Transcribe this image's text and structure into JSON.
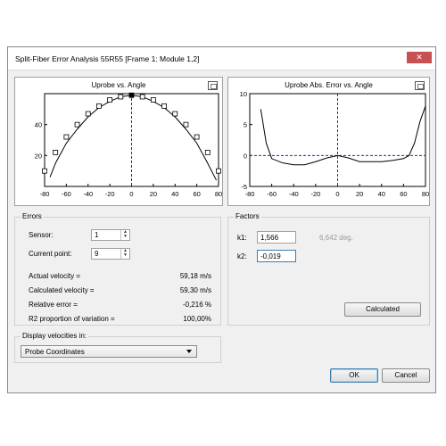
{
  "window": {
    "title": "Split-Fiber Error Analysis 55R55 [Frame 1: Module 1,2]",
    "close_glyph": "✕"
  },
  "plot_left": {
    "title": "Uprobe vs. Angle"
  },
  "plot_right": {
    "title": "Uprobe Abs. Error vs. Angle"
  },
  "errors": {
    "group_label": "Errors",
    "sensor_label": "Sensor:",
    "sensor_value": "1",
    "current_point_label": "Current point:",
    "current_point_value": "9",
    "rows": [
      {
        "label": "Actual velocity =",
        "value": "59,18 m/s"
      },
      {
        "label": "Calculated velocity =",
        "value": "59,30 m/s"
      },
      {
        "label": "Relative error =",
        "value": "-0,216 %"
      },
      {
        "label": "R2 proportion of variation =",
        "value": "100,00%"
      }
    ]
  },
  "factors": {
    "group_label": "Factors",
    "k1_label": "k1:",
    "k1_value": "1,566",
    "k1_note": "6,642 deg.",
    "k2_label": "k2:",
    "k2_value": "-0,019",
    "calculated_button": "Calculated"
  },
  "display": {
    "group_label": "Display velocities in:",
    "selected": "Probe Coordinates"
  },
  "buttons": {
    "ok": "OK",
    "cancel": "Cancel"
  },
  "chart_data": [
    {
      "type": "scatter",
      "title": "Uprobe vs. Angle",
      "xlim": [
        -80,
        80
      ],
      "ylim": [
        0,
        60
      ],
      "xticks": [
        -80,
        -60,
        -40,
        -20,
        0,
        20,
        40,
        60,
        80
      ],
      "yticks": [
        20,
        40
      ],
      "grid": false,
      "points": {
        "x": [
          -80,
          -70,
          -60,
          -50,
          -40,
          -30,
          -20,
          -10,
          0,
          10,
          20,
          30,
          40,
          50,
          60,
          70,
          80
        ],
        "y": [
          10,
          22,
          32,
          40,
          47,
          52,
          56,
          58,
          59,
          58,
          56,
          52,
          47,
          40,
          32,
          22,
          10
        ]
      },
      "curve": {
        "x": [
          -75,
          -70,
          -60,
          -50,
          -40,
          -30,
          -20,
          -10,
          0,
          10,
          20,
          30,
          40,
          50,
          60,
          70,
          78
        ],
        "y": [
          6,
          15,
          28,
          37,
          45,
          51,
          55,
          58,
          59,
          58,
          55,
          51,
          45,
          37,
          28,
          15,
          4
        ]
      },
      "cursor_x": 0
    },
    {
      "type": "line",
      "title": "Uprobe Abs. Error vs. Angle",
      "xlim": [
        -80,
        80
      ],
      "ylim": [
        -5,
        10
      ],
      "xticks": [
        -80,
        -60,
        -40,
        -20,
        0,
        20,
        40,
        60,
        80
      ],
      "yticks": [
        -5,
        0,
        5,
        10
      ],
      "grid": false,
      "series": [
        {
          "x": [
            -70,
            -65,
            -60,
            -50,
            -40,
            -30,
            -20,
            -10,
            0,
            10,
            20,
            30,
            40,
            50,
            60,
            65,
            70,
            75,
            80
          ],
          "y": [
            7.5,
            2,
            -0.5,
            -1.2,
            -1.5,
            -1.5,
            -1,
            -0.4,
            0,
            -0.4,
            -1,
            -1,
            -1,
            -0.8,
            -0.5,
            0,
            2,
            5.5,
            8
          ]
        }
      ],
      "reference_y": 0,
      "cursor_x": 0
    }
  ]
}
